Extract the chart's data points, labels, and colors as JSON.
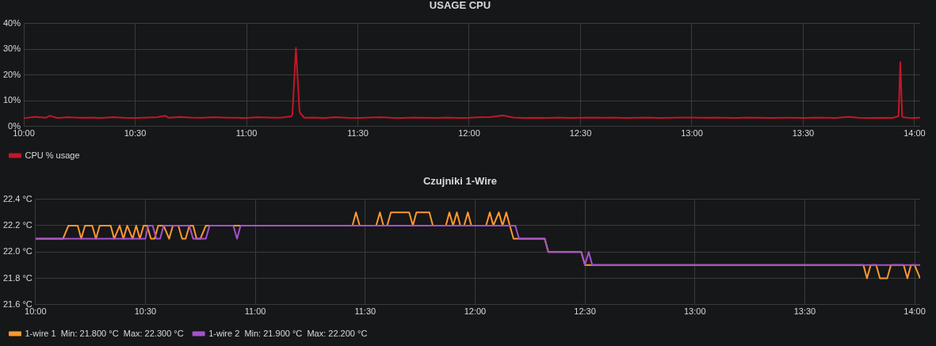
{
  "chart_data": [
    {
      "type": "line",
      "title": "USAGE CPU",
      "legend": "bottom left",
      "grid": true,
      "xlim": [
        10,
        14.025
      ],
      "xticks": [
        {
          "value": 10,
          "label": "10:00"
        },
        {
          "value": 10.5,
          "label": "10:30"
        },
        {
          "value": 11,
          "label": "11:00"
        },
        {
          "value": 11.5,
          "label": "11:30"
        },
        {
          "value": 12,
          "label": "12:00"
        },
        {
          "value": 12.5,
          "label": "12:30"
        },
        {
          "value": 13,
          "label": "13:00"
        },
        {
          "value": 13.5,
          "label": "13:30"
        },
        {
          "value": 14,
          "label": "14:00"
        }
      ],
      "ylim": [
        0,
        40
      ],
      "yticks": [
        {
          "value": 0,
          "label": "0%"
        },
        {
          "value": 10,
          "label": "10%"
        },
        {
          "value": 20,
          "label": "20%"
        },
        {
          "value": 30,
          "label": "30%"
        },
        {
          "value": 40,
          "label": "40%"
        }
      ],
      "series": [
        {
          "name": "CPU % usage",
          "color": "#c4162a",
          "x": [
            10,
            10.05,
            10.1,
            10.117,
            10.15,
            10.2,
            10.25,
            10.3,
            10.35,
            10.4,
            10.45,
            10.5,
            10.55,
            10.6,
            10.633,
            10.65,
            10.7,
            10.75,
            10.8,
            10.85,
            10.9,
            10.95,
            11,
            11.05,
            11.1,
            11.15,
            11.2,
            11.206,
            11.222,
            11.238,
            11.243,
            11.26,
            11.3,
            11.35,
            11.4,
            11.45,
            11.5,
            11.55,
            11.6,
            11.65,
            11.7,
            11.75,
            11.8,
            11.85,
            11.9,
            11.95,
            12,
            12.05,
            12.1,
            12.15,
            12.2,
            12.25,
            12.3,
            12.35,
            12.4,
            12.45,
            12.5,
            12.55,
            12.6,
            12.65,
            12.7,
            12.75,
            12.8,
            12.85,
            12.9,
            12.95,
            13,
            13.05,
            13.1,
            13.15,
            13.2,
            13.25,
            13.3,
            13.35,
            13.4,
            13.45,
            13.5,
            13.55,
            13.6,
            13.65,
            13.7,
            13.75,
            13.8,
            13.85,
            13.9,
            13.928,
            13.936,
            13.944,
            13.948,
            13.97,
            14,
            14.025
          ],
          "values": [
            3.2,
            3.8,
            3.4,
            4.2,
            3.3,
            3.6,
            3.4,
            3.5,
            3.3,
            3.6,
            3.4,
            3.3,
            3.5,
            3.6,
            4.2,
            3.4,
            3.7,
            3.5,
            3.4,
            3.6,
            3.5,
            3.4,
            3.3,
            3.6,
            3.5,
            3.4,
            3.9,
            4.5,
            30.5,
            6,
            5,
            3.4,
            3.5,
            3.3,
            3.6,
            3.4,
            3.3,
            3.5,
            3.6,
            3.4,
            3.3,
            3.5,
            3.4,
            3.3,
            3.5,
            3.3,
            3.4,
            3.6,
            3.7,
            4.3,
            3.5,
            3.3,
            3.4,
            3.3,
            3.5,
            3.3,
            3.4,
            3.5,
            3.4,
            3.5,
            3.3,
            3.4,
            3.5,
            3.3,
            3.4,
            3.5,
            3.5,
            3.4,
            3.5,
            3.4,
            3.3,
            3.5,
            3.4,
            3.3,
            3.4,
            3.4,
            3.3,
            3.5,
            3.4,
            3.3,
            3.8,
            3.4,
            3.3,
            3.4,
            3.3,
            4,
            25,
            4,
            3.6,
            3.4,
            3.3,
            3.5
          ]
        }
      ]
    },
    {
      "type": "line",
      "title": "Czujniki 1-Wire",
      "legend": "bottom left",
      "grid": true,
      "xlim": [
        10,
        14.025
      ],
      "xticks": [
        {
          "value": 10,
          "label": "10:00"
        },
        {
          "value": 10.5,
          "label": "10:30"
        },
        {
          "value": 11,
          "label": "11:00"
        },
        {
          "value": 11.5,
          "label": "11:30"
        },
        {
          "value": 12,
          "label": "12:00"
        },
        {
          "value": 12.5,
          "label": "12:30"
        },
        {
          "value": 13,
          "label": "13:00"
        },
        {
          "value": 13.5,
          "label": "13:30"
        },
        {
          "value": 14,
          "label": "14:00"
        }
      ],
      "ylim": [
        21.6,
        22.4
      ],
      "yticks": [
        {
          "value": 21.6,
          "label": "21.6 °C"
        },
        {
          "value": 21.8,
          "label": "21.8 °C"
        },
        {
          "value": 22,
          "label": "22.0 °C"
        },
        {
          "value": 22.2,
          "label": "22.2 °C"
        },
        {
          "value": 22.4,
          "label": "22.4 °C"
        }
      ],
      "series": [
        {
          "name": "1-wire 1  Min: 21.800 °C  Max: 22.300 °C",
          "color": "#ff9830",
          "x": [
            10,
            10.125,
            10.15,
            10.192,
            10.208,
            10.225,
            10.258,
            10.275,
            10.292,
            10.342,
            10.358,
            10.383,
            10.4,
            10.417,
            10.442,
            10.458,
            10.475,
            10.492,
            10.508,
            10.525,
            10.542,
            10.558,
            10.583,
            10.608,
            10.625,
            10.65,
            10.667,
            10.683,
            10.7,
            10.717,
            10.733,
            10.75,
            10.775,
            11.442,
            11.458,
            11.475,
            11.55,
            11.567,
            11.583,
            11.6,
            11.617,
            11.7,
            11.717,
            11.733,
            11.792,
            11.808,
            11.867,
            11.883,
            11.9,
            11.917,
            11.933,
            11.95,
            11.967,
            11.983,
            12.05,
            12.067,
            12.083,
            12.108,
            12.125,
            12.142,
            12.158,
            12.175,
            12.317,
            12.333,
            12.483,
            12.5,
            13.767,
            13.783,
            13.8,
            13.825,
            13.842,
            13.875,
            13.892,
            13.95,
            13.967,
            13.983,
            14,
            14.025
          ],
          "values": [
            22.1,
            22.1,
            22.2,
            22.2,
            22.1,
            22.2,
            22.2,
            22.1,
            22.2,
            22.2,
            22.1,
            22.2,
            22.1,
            22.2,
            22.1,
            22.2,
            22.1,
            22.2,
            22.2,
            22.1,
            22.1,
            22.2,
            22.2,
            22.1,
            22.2,
            22.2,
            22.1,
            22.1,
            22.2,
            22.2,
            22.1,
            22.1,
            22.2,
            22.2,
            22.3,
            22.2,
            22.2,
            22.3,
            22.2,
            22.2,
            22.3,
            22.3,
            22.2,
            22.3,
            22.3,
            22.2,
            22.2,
            22.3,
            22.2,
            22.3,
            22.2,
            22.2,
            22.3,
            22.2,
            22.2,
            22.3,
            22.2,
            22.3,
            22.2,
            22.3,
            22.2,
            22.1,
            22.1,
            22,
            22,
            21.9,
            21.9,
            21.8,
            21.9,
            21.9,
            21.8,
            21.8,
            21.9,
            21.9,
            21.8,
            21.9,
            21.9,
            21.8
          ]
        },
        {
          "name": "1-wire 2  Min: 21.900 °C  Max: 22.200 °C",
          "color": "#a352cc",
          "x": [
            10,
            10.5,
            10.513,
            10.533,
            10.55,
            10.567,
            10.583,
            10.7,
            10.717,
            10.775,
            10.792,
            10.9,
            10.917,
            10.933,
            12.183,
            12.2,
            12.317,
            12.333,
            12.483,
            12.5,
            12.517,
            12.533,
            14.025
          ],
          "values": [
            22.1,
            22.1,
            22.2,
            22.2,
            22.1,
            22.1,
            22.2,
            22.2,
            22.1,
            22.1,
            22.2,
            22.2,
            22.1,
            22.2,
            22.2,
            22.1,
            22.1,
            22,
            22,
            21.9,
            22,
            21.9,
            21.9
          ]
        }
      ]
    }
  ]
}
